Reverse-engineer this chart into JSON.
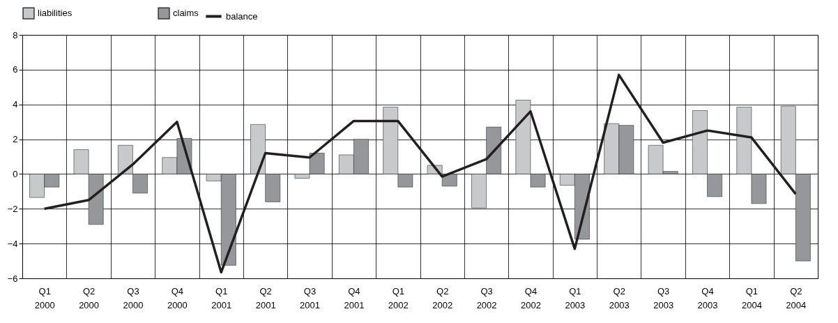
{
  "chart_data": {
    "type": "bar",
    "categories": [
      "Q1 2000",
      "Q2 2000",
      "Q3 2000",
      "Q4 2000",
      "Q1 2001",
      "Q2 2001",
      "Q3 2001",
      "Q4 2001",
      "Q1 2002",
      "Q2 2002",
      "Q3 2002",
      "Q4 2002",
      "Q1 2003",
      "Q2 2003",
      "Q3 2003",
      "Q4 2003",
      "Q1 2004",
      "Q2 2004"
    ],
    "series": [
      {
        "name": "liabilities",
        "color": "#c8c9cb",
        "values": [
          -1.35,
          1.4,
          1.65,
          0.95,
          -0.4,
          2.85,
          -0.25,
          1.1,
          3.85,
          0.5,
          -1.95,
          4.25,
          -0.65,
          2.9,
          1.65,
          3.65,
          3.85,
          3.9
        ]
      },
      {
        "name": "claims",
        "color": "#96979b",
        "values": [
          -0.75,
          -2.9,
          -1.1,
          2.05,
          -5.25,
          -1.6,
          1.2,
          2.0,
          -0.75,
          -0.7,
          2.7,
          -0.75,
          -3.75,
          2.8,
          0.15,
          -1.3,
          -1.7,
          -5.0
        ]
      },
      {
        "name": "balance",
        "type": "line",
        "color": "#231f20",
        "values": [
          -2.0,
          -1.5,
          0.55,
          3.0,
          -5.65,
          1.2,
          0.95,
          3.05,
          3.05,
          -0.15,
          0.85,
          3.6,
          -4.3,
          5.7,
          1.8,
          2.5,
          2.1,
          -1.15
        ]
      }
    ],
    "ylim": [
      -6,
      8
    ],
    "yticks": [
      -6,
      -4,
      -2,
      0,
      2,
      4,
      6,
      8
    ],
    "grid": true,
    "legend": "top",
    "marker": "none",
    "line_style": "solid"
  }
}
